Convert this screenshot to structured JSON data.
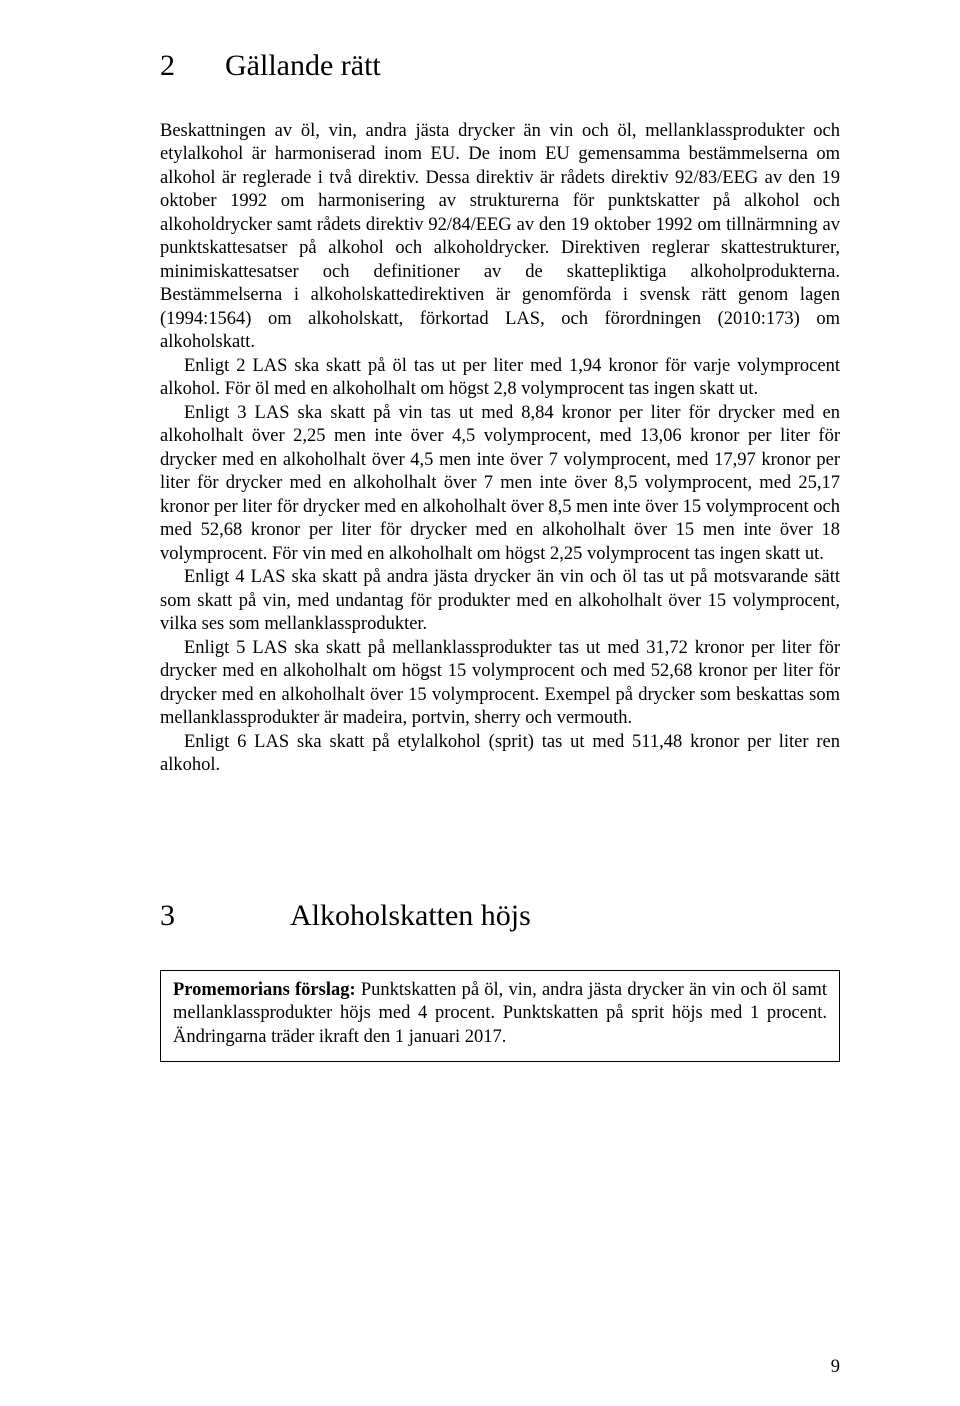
{
  "section2": {
    "number": "2",
    "title": "Gällande rätt",
    "p1": "Beskattningen av öl, vin, andra jästa drycker än vin och öl, mellanklassprodukter och etylalkohol är harmoniserad inom EU. De inom EU gemensamma bestämmelserna om alkohol är reglerade i två direktiv. Dessa direktiv är rådets direktiv 92/83/EEG av den 19 oktober 1992 om harmonisering av strukturerna för punktskatter på alkohol och alkoholdrycker samt rådets direktiv 92/84/EEG av den 19 oktober 1992 om tillnärmning av punktskattesatser på alkohol och alkoholdrycker. Direktiven reglerar skattestrukturer, minimiskattesatser och definitioner av de skattepliktiga alkoholprodukterna. Bestämmelserna i alkoholskattedirektiven är genomförda i svensk rätt genom lagen (1994:1564) om alkoholskatt, förkortad LAS, och förordningen (2010:173) om alkoholskatt.",
    "p2": "Enligt 2 LAS ska skatt på öl tas ut per liter med 1,94 kronor för varje volymprocent alkohol. För öl med en alkoholhalt om högst 2,8 volymprocent tas ingen skatt ut.",
    "p3": "Enligt 3 LAS ska skatt på vin tas ut med 8,84 kronor per liter för drycker med en alkoholhalt över 2,25 men inte över 4,5 volymprocent, med 13,06 kronor per liter för drycker med en alkoholhalt över 4,5 men inte över 7 volymprocent, med 17,97 kronor per liter för drycker med en alkoholhalt över 7 men inte över 8,5 volymprocent, med 25,17 kronor per liter för drycker med en alkoholhalt över 8,5 men inte över 15 volymprocent och med 52,68 kronor per liter för drycker med en alkoholhalt över 15 men inte över 18 volymprocent. För vin med en alkoholhalt om högst 2,25 volymprocent tas ingen skatt ut.",
    "p4": "Enligt 4 LAS ska skatt på andra jästa drycker än vin och öl tas ut på motsvarande sätt som skatt på vin, med undantag för produkter med en alkoholhalt över 15 volymprocent, vilka ses som mellanklassprodukter.",
    "p5": "Enligt 5 LAS ska skatt på mellanklassprodukter tas ut med 31,72 kronor per liter för drycker med en alkoholhalt om högst 15 volymprocent och med 52,68 kronor per liter för drycker med en alkoholhalt över 15 volymprocent. Exempel på drycker som beskattas som mellanklassprodukter är madeira, portvin, sherry och vermouth.",
    "p6": "Enligt 6 LAS ska skatt på etylalkohol (sprit) tas ut med 511,48 kronor per liter ren alkohol."
  },
  "section3": {
    "number": "3",
    "title": "Alkoholskatten höjs",
    "promo_lead": "Promemorians förslag:",
    "promo_body": " Punktskatten på öl, vin, andra jästa drycker än vin och öl samt mellanklassprodukter höjs med 4 procent. Punktskatten på sprit höjs med 1 procent. Ändringarna träder ikraft den 1 januari 2017."
  },
  "page_number": "9"
}
